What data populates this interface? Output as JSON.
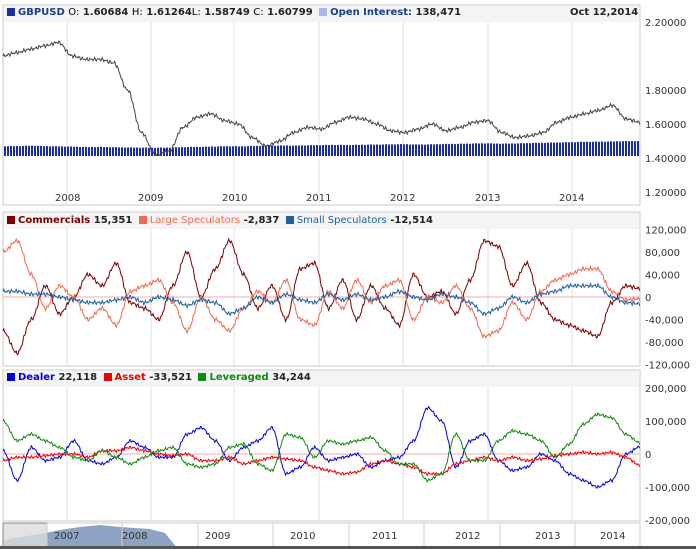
{
  "header": {
    "symbol": "GBPUSD",
    "o_label": "O:",
    "open": "1.60684",
    "h_label": "H:",
    "high": "1.61264",
    "l_label": "L:",
    "low": "1.58749",
    "c_label": "C:",
    "close": "1.60799",
    "oi_label": "Open Interest:",
    "oi_value": "138,471",
    "date": "Oct 12,2014"
  },
  "legend2": [
    {
      "name": "Commercials",
      "value": "15,351",
      "color": "#7a0000"
    },
    {
      "name": "Large Speculators",
      "value": "-2,837",
      "color": "#f06a50"
    },
    {
      "name": "Small Speculators",
      "value": "-12,514",
      "color": "#2060a0"
    }
  ],
  "legend3": [
    {
      "name": "Dealer",
      "value": "22,118",
      "color": "#0000dd"
    },
    {
      "name": "Asset",
      "value": "-33,521",
      "color": "#ee0000"
    },
    {
      "name": "Leveraged",
      "value": "34,244",
      "color": "#118811"
    }
  ],
  "chart_data": [
    {
      "type": "line",
      "title": "GBPUSD",
      "x_ticks": [
        "2008",
        "2009",
        "2010",
        "2011",
        "2012",
        "2013",
        "2014"
      ],
      "y_ticks": [
        "2.20000",
        "1.80000",
        "1.60000",
        "1.40000",
        "1.20000"
      ],
      "ylim": [
        1.1,
        2.2
      ],
      "series": [
        {
          "name": "GBPUSD",
          "color": "#444444",
          "values": [
            2.0,
            2.02,
            2.04,
            2.06,
            2.08,
            2.0,
            1.98,
            1.98,
            1.96,
            1.8,
            1.55,
            1.42,
            1.44,
            1.58,
            1.64,
            1.66,
            1.62,
            1.6,
            1.52,
            1.47,
            1.5,
            1.55,
            1.58,
            1.57,
            1.61,
            1.64,
            1.63,
            1.6,
            1.56,
            1.55,
            1.57,
            1.6,
            1.56,
            1.58,
            1.61,
            1.62,
            1.55,
            1.52,
            1.53,
            1.55,
            1.61,
            1.64,
            1.66,
            1.68,
            1.71,
            1.63,
            1.61
          ]
        },
        {
          "name": "Open Interest",
          "type": "bar",
          "color": "#1a2d9e",
          "values": [
            80,
            82,
            85,
            80,
            78,
            75,
            70,
            72,
            68,
            66,
            64,
            62,
            65,
            70,
            72,
            75,
            80,
            78,
            82,
            85,
            88,
            86,
            90,
            92,
            95,
            93,
            96,
            98,
            100,
            102,
            98,
            100,
            104,
            106,
            110,
            112,
            108,
            110,
            114,
            118,
            120,
            124,
            128,
            130,
            132,
            136,
            138
          ]
        }
      ]
    },
    {
      "type": "line",
      "y_ticks": [
        "120,000",
        "80,000",
        "40,000",
        "0",
        "-40,000",
        "-80,000",
        "-120,000"
      ],
      "ylim": [
        -120000,
        120000
      ],
      "series": [
        {
          "name": "Commercials",
          "color": "#7a0000",
          "values": [
            -60,
            -100,
            -40,
            20,
            -30,
            0,
            40,
            20,
            60,
            -10,
            -20,
            -40,
            20,
            80,
            0,
            50,
            100,
            40,
            -20,
            20,
            -40,
            50,
            60,
            -20,
            30,
            -40,
            20,
            -20,
            -50,
            40,
            0,
            10,
            -30,
            30,
            100,
            90,
            20,
            60,
            -10,
            -40,
            -50,
            -60,
            -70,
            -10,
            20,
            15
          ]
        },
        {
          "name": "Large Speculators",
          "color": "#f06a50",
          "values": [
            80,
            100,
            40,
            -20,
            20,
            0,
            -40,
            -20,
            -50,
            10,
            20,
            30,
            -10,
            -60,
            0,
            -40,
            -60,
            -20,
            10,
            -10,
            30,
            -40,
            -50,
            10,
            -20,
            30,
            -10,
            20,
            30,
            -40,
            0,
            -10,
            20,
            -20,
            -70,
            -60,
            -10,
            -40,
            10,
            30,
            40,
            50,
            50,
            10,
            -5,
            -3
          ]
        },
        {
          "name": "Small Speculators",
          "color": "#2060a0",
          "values": [
            10,
            10,
            5,
            5,
            0,
            -5,
            -10,
            -10,
            -5,
            0,
            -10,
            0,
            -5,
            -15,
            -5,
            -10,
            -30,
            -20,
            0,
            -10,
            5,
            -5,
            -10,
            5,
            -5,
            5,
            -5,
            0,
            10,
            0,
            -5,
            5,
            0,
            -10,
            -30,
            -20,
            0,
            -10,
            5,
            10,
            20,
            20,
            20,
            0,
            -10,
            -12
          ]
        }
      ],
      "unit": "thousands"
    },
    {
      "type": "line",
      "y_ticks": [
        "200,000",
        "100,000",
        "0",
        "-100,000",
        "-200,000"
      ],
      "ylim": [
        -200000,
        200000
      ],
      "series": [
        {
          "name": "Dealer",
          "color": "#0000dd",
          "values": [
            10,
            -80,
            20,
            -20,
            -10,
            40,
            -20,
            -30,
            -10,
            40,
            20,
            -10,
            -10,
            60,
            80,
            40,
            -20,
            20,
            40,
            80,
            -60,
            -40,
            20,
            -20,
            -10,
            0,
            -40,
            -20,
            -10,
            40,
            140,
            100,
            -40,
            40,
            60,
            -20,
            -50,
            -40,
            0,
            -20,
            -60,
            -80,
            -100,
            -80,
            0,
            22
          ]
        },
        {
          "name": "Asset",
          "color": "#ee0000",
          "values": [
            -20,
            -10,
            -10,
            -5,
            0,
            0,
            -10,
            10,
            10,
            20,
            10,
            0,
            -5,
            0,
            -20,
            -20,
            -10,
            -30,
            -20,
            -10,
            -15,
            -20,
            -40,
            -50,
            -60,
            -55,
            -30,
            -20,
            -30,
            -40,
            -60,
            -60,
            -30,
            -20,
            -10,
            -20,
            -10,
            -20,
            -15,
            -5,
            0,
            5,
            0,
            5,
            -10,
            -34
          ]
        },
        {
          "name": "Leveraged",
          "color": "#118811",
          "values": [
            100,
            40,
            60,
            40,
            20,
            -10,
            -20,
            10,
            -10,
            -30,
            -10,
            10,
            20,
            -30,
            -40,
            -30,
            20,
            30,
            -30,
            -50,
            60,
            50,
            -10,
            40,
            30,
            40,
            50,
            10,
            -30,
            -30,
            -80,
            -60,
            60,
            -20,
            -20,
            40,
            70,
            60,
            40,
            -10,
            30,
            90,
            120,
            110,
            60,
            34
          ]
        }
      ],
      "unit": "thousands"
    },
    {
      "type": "area",
      "name": "navigator",
      "x_ticks": [
        "2007",
        "2008",
        "2009",
        "2010",
        "2011",
        "2012",
        "2013",
        "2014"
      ]
    }
  ]
}
